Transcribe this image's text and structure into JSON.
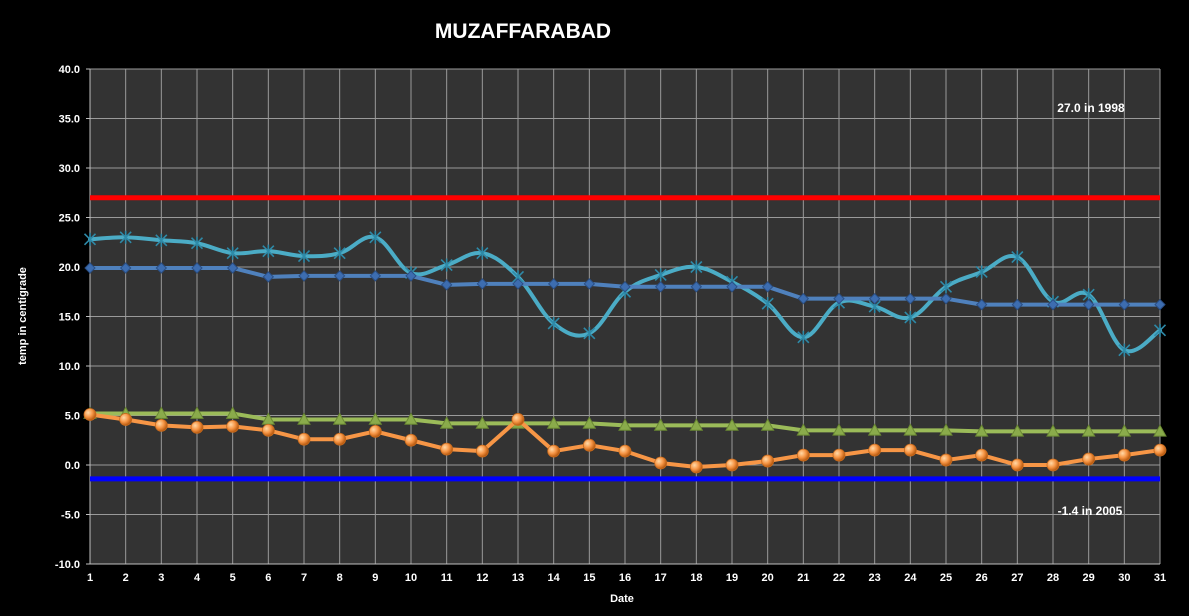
{
  "chart_data": {
    "type": "line",
    "title": "MUZAFFARABAD",
    "xlabel": "Date",
    "ylabel": "temp in centigrade",
    "ylim": [
      -10,
      40
    ],
    "yticks": [
      "-10.0",
      "-5.0",
      "0.0",
      "5.0",
      "10.0",
      "15.0",
      "20.0",
      "25.0",
      "30.0",
      "35.0",
      "40.0"
    ],
    "x": [
      1,
      2,
      3,
      4,
      5,
      6,
      7,
      8,
      9,
      10,
      11,
      12,
      13,
      14,
      15,
      16,
      17,
      18,
      19,
      20,
      21,
      22,
      23,
      24,
      25,
      26,
      27,
      28,
      29,
      30,
      31
    ],
    "grid": true,
    "legend": "none",
    "plot_background": "#333333",
    "grid_color": "#9a9a9a",
    "series": [
      {
        "color": "#4bacc6",
        "marker": "star",
        "smooth": true,
        "values": [
          22.8,
          23.0,
          22.7,
          22.4,
          21.4,
          21.6,
          21.1,
          21.4,
          23.0,
          19.4,
          20.2,
          21.4,
          19.0,
          14.3,
          13.3,
          17.5,
          19.2,
          20.0,
          18.5,
          16.3,
          12.9,
          16.4,
          16.0,
          14.9,
          18.0,
          19.5,
          21.0,
          16.5,
          17.2,
          11.6,
          13.6
        ]
      },
      {
        "color": "#4f81bd",
        "marker": "diamond",
        "smooth": false,
        "values": [
          19.9,
          19.9,
          19.9,
          19.9,
          19.9,
          19.0,
          19.1,
          19.1,
          19.1,
          19.1,
          18.2,
          18.3,
          18.3,
          18.3,
          18.3,
          18.0,
          18.0,
          18.0,
          18.0,
          18.0,
          16.8,
          16.8,
          16.8,
          16.8,
          16.8,
          16.2,
          16.2,
          16.2,
          16.2,
          16.2,
          16.2
        ]
      },
      {
        "color": "#9bbb59",
        "marker": "triangle",
        "smooth": false,
        "values": [
          5.2,
          5.2,
          5.2,
          5.2,
          5.2,
          4.6,
          4.6,
          4.6,
          4.6,
          4.6,
          4.2,
          4.2,
          4.2,
          4.2,
          4.2,
          4.0,
          4.0,
          4.0,
          4.0,
          4.0,
          3.5,
          3.5,
          3.5,
          3.5,
          3.5,
          3.4,
          3.4,
          3.4,
          3.4,
          3.4,
          3.4
        ]
      },
      {
        "color": "#f79646",
        "marker": "circle",
        "smooth": false,
        "values": [
          5.1,
          4.6,
          4.0,
          3.8,
          3.9,
          3.5,
          2.6,
          2.6,
          3.4,
          2.5,
          1.6,
          1.4,
          4.6,
          1.4,
          2.0,
          1.4,
          0.2,
          -0.2,
          0.0,
          0.4,
          1.0,
          1.0,
          1.5,
          1.5,
          0.5,
          1.0,
          0.0,
          0.0,
          0.6,
          1.0,
          1.5
        ]
      }
    ],
    "reference_lines": [
      {
        "value": 27.0,
        "color": "#ff0000",
        "label": "27.0 in 1998"
      },
      {
        "value": -1.4,
        "color": "#0000ff",
        "label": "-1.4 in 2005"
      }
    ]
  }
}
